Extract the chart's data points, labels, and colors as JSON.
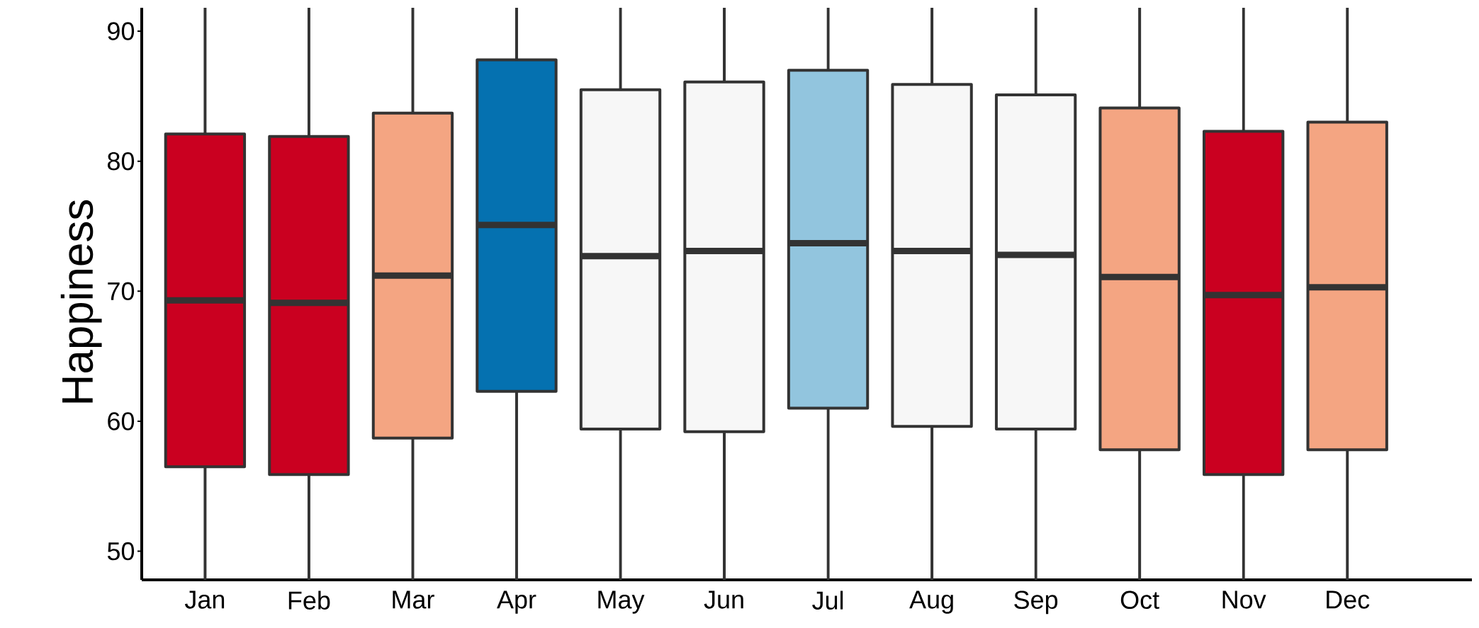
{
  "chart_data": {
    "type": "box",
    "ylabel": "Happiness",
    "categories": [
      "Jan",
      "Feb",
      "Mar",
      "Apr",
      "May",
      "Jun",
      "Jul",
      "Aug",
      "Sep",
      "Oct",
      "Nov",
      "Dec"
    ],
    "boxes": [
      {
        "low": 47.8,
        "q1": 56.5,
        "median": 69.3,
        "q3": 82.1,
        "high": 91.8
      },
      {
        "low": 47.8,
        "q1": 55.9,
        "median": 69.1,
        "q3": 81.9,
        "high": 91.8
      },
      {
        "low": 47.8,
        "q1": 58.7,
        "median": 71.2,
        "q3": 83.7,
        "high": 91.8
      },
      {
        "low": 47.8,
        "q1": 62.3,
        "median": 75.1,
        "q3": 87.8,
        "high": 91.8
      },
      {
        "low": 47.8,
        "q1": 59.4,
        "median": 72.7,
        "q3": 85.5,
        "high": 91.8
      },
      {
        "low": 47.8,
        "q1": 59.2,
        "median": 73.1,
        "q3": 86.1,
        "high": 91.8
      },
      {
        "low": 47.8,
        "q1": 61.0,
        "median": 73.7,
        "q3": 87.0,
        "high": 91.8
      },
      {
        "low": 47.8,
        "q1": 59.6,
        "median": 73.1,
        "q3": 85.9,
        "high": 91.8
      },
      {
        "low": 47.8,
        "q1": 59.4,
        "median": 72.8,
        "q3": 85.1,
        "high": 91.8
      },
      {
        "low": 47.8,
        "q1": 57.8,
        "median": 71.1,
        "q3": 84.1,
        "high": 91.8
      },
      {
        "low": 47.8,
        "q1": 55.9,
        "median": 69.7,
        "q3": 82.3,
        "high": 91.8
      },
      {
        "low": 47.8,
        "q1": 57.8,
        "median": 70.3,
        "q3": 83.0,
        "high": 91.8
      }
    ],
    "colors": [
      "#ca0020",
      "#ca0020",
      "#f4a582",
      "#0571b0",
      "#f7f7f7",
      "#f7f7f7",
      "#92c5de",
      "#f7f7f7",
      "#f7f7f7",
      "#f4a582",
      "#ca0020",
      "#f4a582"
    ],
    "ylim": [
      47.8,
      91.8
    ],
    "yticks": [
      50,
      60,
      70,
      80,
      90
    ],
    "grid": false
  }
}
